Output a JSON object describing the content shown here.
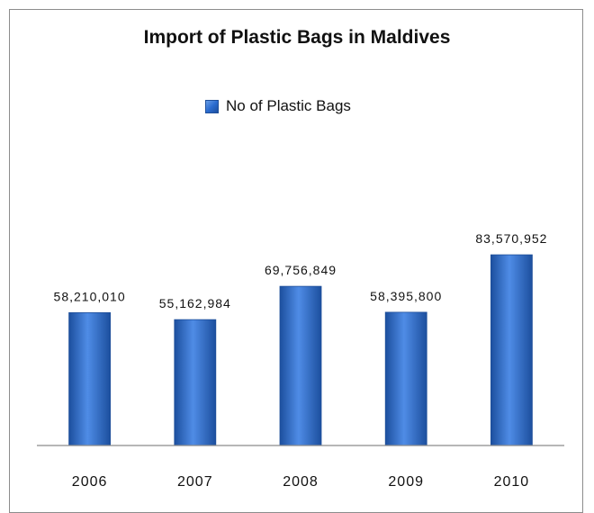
{
  "chart_data": {
    "type": "bar",
    "title": "Import of Plastic Bags in Maldives",
    "categories": [
      "2006",
      "2007",
      "2008",
      "2009",
      "2010"
    ],
    "series": [
      {
        "name": "No of Plastic Bags",
        "values": [
          58210010,
          55162984,
          69756849,
          58395800,
          83570952
        ]
      }
    ],
    "data_labels": [
      "58,210,010",
      "55,162,984",
      "69,756,849",
      "58,395,800",
      "83,570,952"
    ],
    "xlabel": "",
    "ylabel": "",
    "ylim": [
      0,
      140000000
    ],
    "grid": false,
    "legend_position": "top",
    "colors": {
      "bar": "#2b6cd0",
      "bar_edge": "#1f4f9a",
      "axis": "#8c8c8c"
    }
  }
}
